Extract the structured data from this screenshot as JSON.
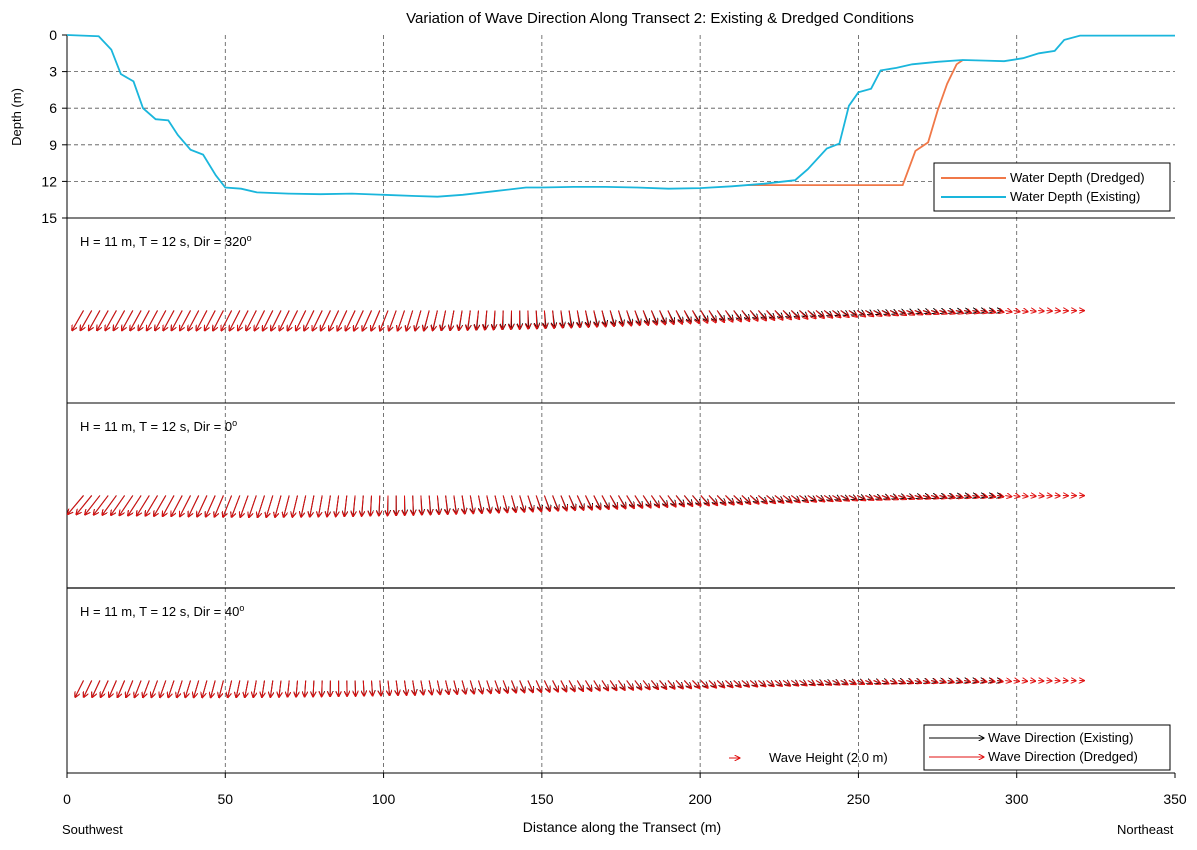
{
  "chart_data": [
    {
      "type": "line",
      "title": "Variation of Wave Direction Along Transect 2: Existing & Dredged Conditions",
      "xlabel": "Distance along the Transect (m)",
      "ylabel": "Depth (m)",
      "xlim": [
        0,
        350
      ],
      "ylim": [
        0,
        15
      ],
      "y_inverted": true,
      "x_ticks": [
        "0",
        "50",
        "100",
        "150",
        "200",
        "250",
        "300",
        "350"
      ],
      "y_ticks": [
        "0",
        "3",
        "6",
        "9",
        "12",
        "15"
      ],
      "grid": "dashed at x = 50, 100, 150, 200, 250, 300 and depth = 3, 6, 9, 12",
      "legend_position": "bottom-right",
      "series": [
        {
          "name": "Water Depth (Existing)",
          "color": "#1ab6dc",
          "x": [
            0,
            5,
            10,
            14,
            17,
            21,
            24,
            28,
            32,
            35,
            39,
            43,
            47,
            50,
            55,
            60,
            70,
            80,
            90,
            100,
            110,
            117,
            125,
            135,
            145,
            150,
            160,
            170,
            180,
            190,
            200,
            210,
            220,
            230,
            234,
            240,
            244,
            247,
            250,
            254,
            257,
            262,
            267,
            275,
            283,
            290,
            296,
            302,
            307,
            312,
            315,
            320,
            350
          ],
          "y": [
            0,
            0.05,
            0.1,
            1.2,
            3.2,
            3.8,
            6.0,
            6.9,
            7.0,
            8.2,
            9.4,
            9.8,
            11.5,
            12.5,
            12.6,
            12.9,
            13.0,
            13.05,
            13.0,
            13.1,
            13.2,
            13.25,
            13.1,
            12.8,
            12.5,
            12.5,
            12.45,
            12.45,
            12.5,
            12.6,
            12.55,
            12.4,
            12.2,
            11.9,
            11.0,
            9.3,
            8.9,
            5.8,
            4.7,
            4.4,
            2.9,
            2.7,
            2.4,
            2.2,
            2.05,
            2.1,
            2.15,
            1.9,
            1.5,
            1.3,
            0.4,
            0.05,
            0.05
          ]
        },
        {
          "name": "Water Depth (Dredged)",
          "color": "#f07848",
          "x": [
            215,
            225,
            235,
            245,
            255,
            264,
            268,
            272,
            275,
            278,
            281,
            283
          ],
          "y": [
            12.3,
            12.3,
            12.3,
            12.3,
            12.3,
            12.3,
            9.5,
            8.8,
            6.2,
            4.0,
            2.4,
            2.05
          ]
        }
      ]
    },
    {
      "type": "vector",
      "label": "H = 11 m, T = 12 s, Dir = 320",
      "degree_symbol": "o",
      "vector_unit": "length (m) and direction (degrees clockwise from up/North)",
      "reference_vector": {
        "label": "Wave Height (2.0 m)",
        "length_m": 2.0
      },
      "existing": {
        "start_x": 0,
        "end_x": 295,
        "start_length": 4.3,
        "mid_length": 4.2,
        "mid_x": 95,
        "end_length": 0.9,
        "start_angle": 210,
        "mid_angle": 205,
        "end_angle": 95
      },
      "dredged": {
        "start_x": 0,
        "end_x": 322,
        "start_length": 4.3,
        "mid_length": 4.2,
        "mid_x": 95,
        "end_length": 0.9,
        "start_angle": 210,
        "mid_angle": 205,
        "end_angle": 90
      },
      "gap_x": [
        0,
        1,
        2,
        3,
        4,
        5,
        6,
        7
      ],
      "step_m": 2.6
    },
    {
      "type": "vector",
      "label": "H = 11 m, T = 12 s, Dir = 0",
      "degree_symbol": "o",
      "existing": {
        "start_x": 0,
        "end_x": 295,
        "start_length": 4.6,
        "mid_length": 4.3,
        "mid_x": 62,
        "end_length": 0.9,
        "start_angle": 222,
        "mid_angle": 198,
        "end_angle": 96
      },
      "dredged": {
        "start_x": 0,
        "end_x": 322,
        "start_length": 4.6,
        "mid_length": 4.3,
        "mid_x": 62,
        "end_length": 0.9,
        "start_angle": 222,
        "mid_angle": 198,
        "end_angle": 90
      },
      "gap_x": [
        0,
        1,
        2,
        3,
        4,
        5,
        6,
        7
      ],
      "step_m": 2.6
    },
    {
      "type": "vector",
      "label": "H = 11 m, T = 12 s, Dir = 40",
      "degree_symbol": "o",
      "existing": {
        "start_x": 0,
        "end_x": 295,
        "start_length": 3.5,
        "mid_length": 3.3,
        "mid_x": 50,
        "end_length": 0.9,
        "start_angle": 208,
        "mid_angle": 194,
        "end_angle": 96
      },
      "dredged": {
        "start_x": 0,
        "end_x": 322,
        "start_length": 3.5,
        "mid_length": 3.3,
        "mid_x": 50,
        "end_length": 0.9,
        "start_angle": 208,
        "mid_angle": 194,
        "end_angle": 90
      },
      "gap_x": [
        0,
        1,
        2,
        3,
        4,
        5,
        6,
        7
      ],
      "step_m": 2.6
    }
  ],
  "legend_depth": [
    "Water Depth (Dredged)",
    "Water Depth (Existing)"
  ],
  "legend_direction": [
    "Wave Direction (Existing)",
    "Wave Direction (Dredged)"
  ],
  "colors": {
    "existing_arrow": "#000000",
    "dredged_arrow": "#e01010",
    "dredged_depth": "#f07848",
    "existing_depth": "#1ab6dc"
  },
  "bottom_labels": {
    "left": "Southwest",
    "right": "Northeast"
  }
}
